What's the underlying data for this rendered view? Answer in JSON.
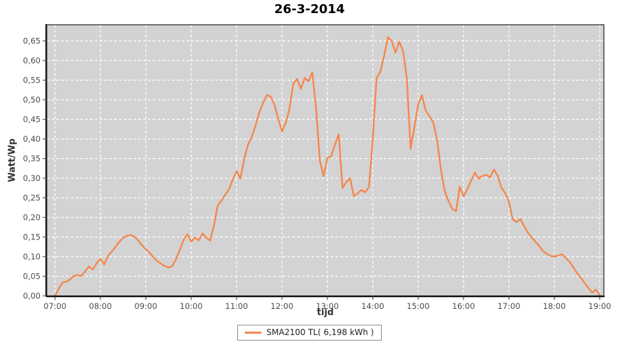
{
  "title": "26-3-2014",
  "colors": {
    "outer_bg": "#ffffff",
    "plot_bg": "#d3d3d3",
    "grid": "#ffffff",
    "plot_border": "#3c3c3c",
    "axis_line": "#1a1a1a",
    "tick_text": "#4a4a4a",
    "series_orange": "#f4874e"
  },
  "legend": {
    "entries": [
      {
        "label": "SMA2100 TL( 6,198 kWh )",
        "color": "#f4874e"
      }
    ]
  },
  "chart_data": {
    "type": "line",
    "title": "26-3-2014",
    "xlabel": "tijd",
    "ylabel": "Watt/Wp",
    "x_tick_labels": [
      "07:00",
      "08:00",
      "09:00",
      "10:00",
      "11:00",
      "12:00",
      "13:00",
      "14:00",
      "15:00",
      "16:00",
      "17:00",
      "18:00",
      "19:00"
    ],
    "y_tick_labels": [
      "0,00",
      "0,05",
      "0,10",
      "0,15",
      "0,20",
      "0,25",
      "0,30",
      "0,35",
      "0,40",
      "0,45",
      "0,50",
      "0,55",
      "0,60",
      "0,65"
    ],
    "y_tick_step": 0.05,
    "ylim": [
      0,
      0.69
    ],
    "x_start": "07:00",
    "x_end": "19:00",
    "x_interval_minutes": 5,
    "grid": "white dashed on gray, both axes",
    "legend_position": "bottom-center",
    "series": [
      {
        "name": "SMA2100 TL( 6,198 kWh )",
        "color": "#f4874e",
        "values": [
          0.0,
          0.018,
          0.034,
          0.036,
          0.042,
          0.051,
          0.053,
          0.051,
          0.063,
          0.075,
          0.067,
          0.083,
          0.094,
          0.08,
          0.102,
          0.113,
          0.125,
          0.138,
          0.148,
          0.153,
          0.155,
          0.151,
          0.141,
          0.129,
          0.119,
          0.11,
          0.099,
          0.089,
          0.082,
          0.076,
          0.072,
          0.076,
          0.094,
          0.117,
          0.143,
          0.157,
          0.138,
          0.149,
          0.141,
          0.159,
          0.148,
          0.141,
          0.178,
          0.23,
          0.243,
          0.258,
          0.272,
          0.297,
          0.318,
          0.299,
          0.348,
          0.385,
          0.405,
          0.434,
          0.468,
          0.492,
          0.512,
          0.508,
          0.488,
          0.452,
          0.419,
          0.441,
          0.478,
          0.542,
          0.553,
          0.528,
          0.556,
          0.547,
          0.57,
          0.48,
          0.345,
          0.305,
          0.352,
          0.356,
          0.385,
          0.412,
          0.275,
          0.29,
          0.3,
          0.254,
          0.261,
          0.27,
          0.264,
          0.278,
          0.4,
          0.555,
          0.572,
          0.612,
          0.66,
          0.65,
          0.62,
          0.648,
          0.625,
          0.555,
          0.375,
          0.43,
          0.488,
          0.512,
          0.472,
          0.458,
          0.442,
          0.398,
          0.322,
          0.268,
          0.242,
          0.222,
          0.216,
          0.278,
          0.254,
          0.272,
          0.294,
          0.314,
          0.299,
          0.306,
          0.309,
          0.302,
          0.322,
          0.307,
          0.276,
          0.262,
          0.24,
          0.195,
          0.188,
          0.196,
          0.178,
          0.161,
          0.149,
          0.138,
          0.127,
          0.114,
          0.107,
          0.102,
          0.1,
          0.103,
          0.106,
          0.097,
          0.087,
          0.073,
          0.058,
          0.046,
          0.033,
          0.02,
          0.008,
          0.016,
          0.002
        ]
      }
    ]
  }
}
